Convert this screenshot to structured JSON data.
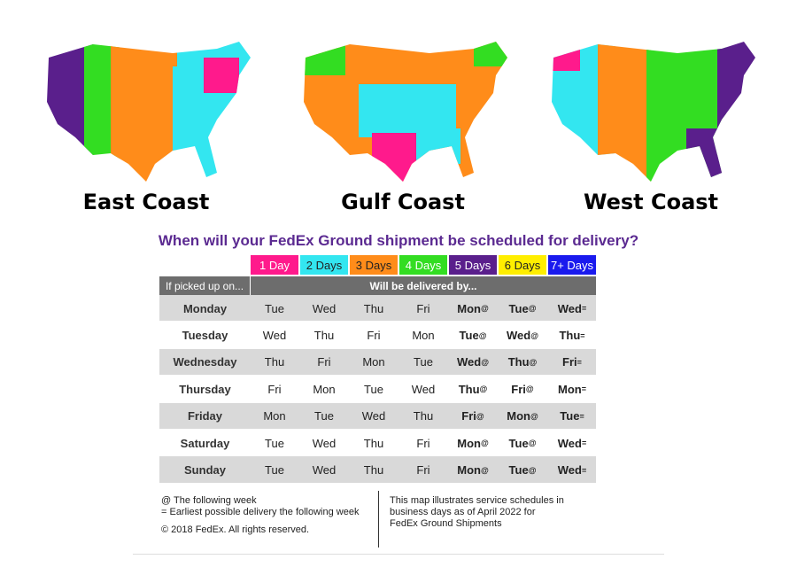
{
  "maps": [
    {
      "label": "East Coast"
    },
    {
      "label": "Gulf Coast"
    },
    {
      "label": "West Coast"
    }
  ],
  "title": "When will your FedEx Ground shipment be scheduled for delivery?",
  "legend": [
    {
      "label": "1 Day",
      "color": "#ff1a8c"
    },
    {
      "label": "2 Days",
      "color": "#33e6f0"
    },
    {
      "label": "3 Days",
      "color": "#ff8c1a"
    },
    {
      "label": "4 Days",
      "color": "#33dd22"
    },
    {
      "label": "5 Days",
      "color": "#5a1f8c"
    },
    {
      "label": "6 Days",
      "color": "#ffee00"
    },
    {
      "label": "7+ Days",
      "color": "#1a1aee"
    }
  ],
  "table": {
    "header": [
      "If picked up on...",
      "Will be delivered by..."
    ],
    "rows": [
      {
        "day": "Monday",
        "cells": [
          "Tue",
          "Wed",
          "Thu",
          "Fri",
          {
            "text": "Mon",
            "mark": "@"
          },
          {
            "text": "Tue",
            "mark": "@"
          },
          {
            "text": "Wed",
            "mark": "="
          }
        ]
      },
      {
        "day": "Tuesday",
        "cells": [
          "Wed",
          "Thu",
          "Fri",
          "Mon",
          {
            "text": "Tue",
            "mark": "@"
          },
          {
            "text": "Wed",
            "mark": "@"
          },
          {
            "text": "Thu",
            "mark": "="
          }
        ]
      },
      {
        "day": "Wednesday",
        "cells": [
          "Thu",
          "Fri",
          "Mon",
          "Tue",
          {
            "text": "Wed",
            "mark": "@"
          },
          {
            "text": "Thu",
            "mark": "@"
          },
          {
            "text": "Fri",
            "mark": "="
          }
        ]
      },
      {
        "day": "Thursday",
        "cells": [
          "Fri",
          "Mon",
          "Tue",
          "Wed",
          {
            "text": "Thu",
            "mark": "@"
          },
          {
            "text": "Fri",
            "mark": "@"
          },
          {
            "text": "Mon",
            "mark": "="
          }
        ]
      },
      {
        "day": "Friday",
        "cells": [
          "Mon",
          "Tue",
          "Wed",
          "Thu",
          {
            "text": "Fri",
            "mark": "@"
          },
          {
            "text": "Mon",
            "mark": "@"
          },
          {
            "text": "Tue",
            "mark": "="
          }
        ]
      },
      {
        "day": "Saturday",
        "cells": [
          "Tue",
          "Wed",
          "Thu",
          "Fri",
          {
            "text": "Mon",
            "mark": "@"
          },
          {
            "text": "Tue",
            "mark": "@"
          },
          {
            "text": "Wed",
            "mark": "="
          }
        ]
      },
      {
        "day": "Sunday",
        "cells": [
          "Tue",
          "Wed",
          "Thu",
          "Fri",
          {
            "text": "Mon",
            "mark": "@"
          },
          {
            "text": "Tue",
            "mark": "@"
          },
          {
            "text": "Wed",
            "mark": "="
          }
        ]
      }
    ]
  },
  "notes": {
    "left": [
      "@ The following week",
      "= Earliest possible delivery the following week",
      "© 2018 FedEx.  All rights reserved."
    ],
    "right": [
      "This map illustrates service schedules in",
      "business days as of April 2022 for",
      "FedEx Ground Shipments"
    ]
  }
}
